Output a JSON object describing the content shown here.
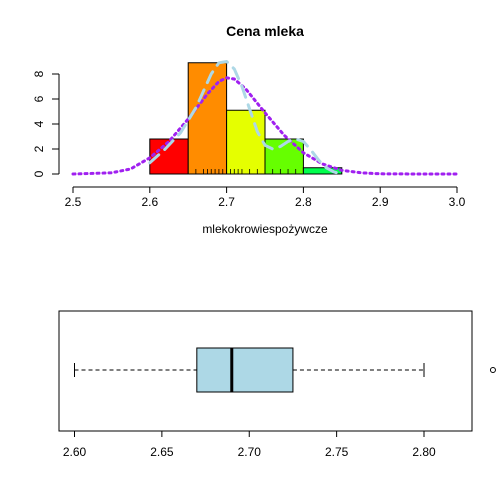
{
  "chart_data": [
    {
      "type": "bar",
      "subtype": "histogram",
      "title": "Cena mleka",
      "xlabel": "mlekokrowiespożywcze",
      "ylabel": "",
      "xlim": [
        2.5,
        3.0
      ],
      "ylim": [
        0,
        9
      ],
      "x_ticks": [
        "2.5",
        "2.6",
        "2.7",
        "2.8",
        "2.9",
        "3.0"
      ],
      "y_ticks": [
        "0",
        "2",
        "4",
        "6",
        "8"
      ],
      "bins": [
        {
          "from": 2.6,
          "to": 2.65,
          "value": 2.8,
          "color": "#ff0000"
        },
        {
          "from": 2.65,
          "to": 2.7,
          "value": 8.9,
          "color": "#ff8c00"
        },
        {
          "from": 2.7,
          "to": 2.75,
          "value": 5.1,
          "color": "#e5ff00"
        },
        {
          "from": 2.75,
          "to": 2.8,
          "value": 2.8,
          "color": "#66ff00"
        },
        {
          "from": 2.8,
          "to": 2.85,
          "value": 0.5,
          "color": "#00ff4d"
        }
      ],
      "rug": [
        2.66,
        2.67,
        2.675,
        2.68,
        2.685,
        2.69,
        2.695,
        2.7,
        2.705,
        2.71,
        2.715,
        2.72,
        2.73,
        2.74,
        2.75,
        2.76,
        2.77,
        2.78,
        2.79
      ],
      "series": [
        {
          "style": "dotted",
          "color": "#a020f0",
          "x": [
            2.5,
            2.55,
            2.575,
            2.6,
            2.625,
            2.65,
            2.675,
            2.69,
            2.7,
            2.71,
            2.725,
            2.75,
            2.775,
            2.8,
            2.825,
            2.85,
            2.875,
            2.9,
            2.95,
            3.0
          ],
          "y": [
            0.0,
            0.1,
            0.4,
            1.3,
            2.6,
            4.4,
            6.4,
            7.4,
            7.7,
            7.6,
            6.8,
            4.9,
            3.1,
            1.7,
            0.8,
            0.3,
            0.1,
            0.02,
            0.0,
            0.0
          ]
        },
        {
          "style": "dashed",
          "color": "#add8e6",
          "x": [
            2.6,
            2.62,
            2.64,
            2.66,
            2.68,
            2.69,
            2.7,
            2.71,
            2.72,
            2.73,
            2.74,
            2.75,
            2.76,
            2.77,
            2.78,
            2.79,
            2.8,
            2.81,
            2.82,
            2.83,
            2.84,
            2.85
          ],
          "y": [
            0.9,
            2.0,
            3.3,
            5.3,
            8.0,
            8.9,
            9.0,
            8.4,
            7.0,
            5.2,
            3.4,
            2.3,
            2.0,
            2.2,
            2.6,
            2.8,
            2.6,
            1.9,
            1.1,
            0.5,
            0.15,
            0.0
          ]
        }
      ]
    },
    {
      "type": "boxplot",
      "orientation": "horizontal",
      "xlim": [
        2.6,
        2.82
      ],
      "x_ticks": [
        "2.60",
        "2.65",
        "2.70",
        "2.75",
        "2.80"
      ],
      "whisker_low": 2.6,
      "q1": 2.67,
      "median": 2.69,
      "q3": 2.725,
      "whisker_high": 2.8,
      "outliers": [
        2.82
      ],
      "fill": "#add8e6"
    }
  ]
}
